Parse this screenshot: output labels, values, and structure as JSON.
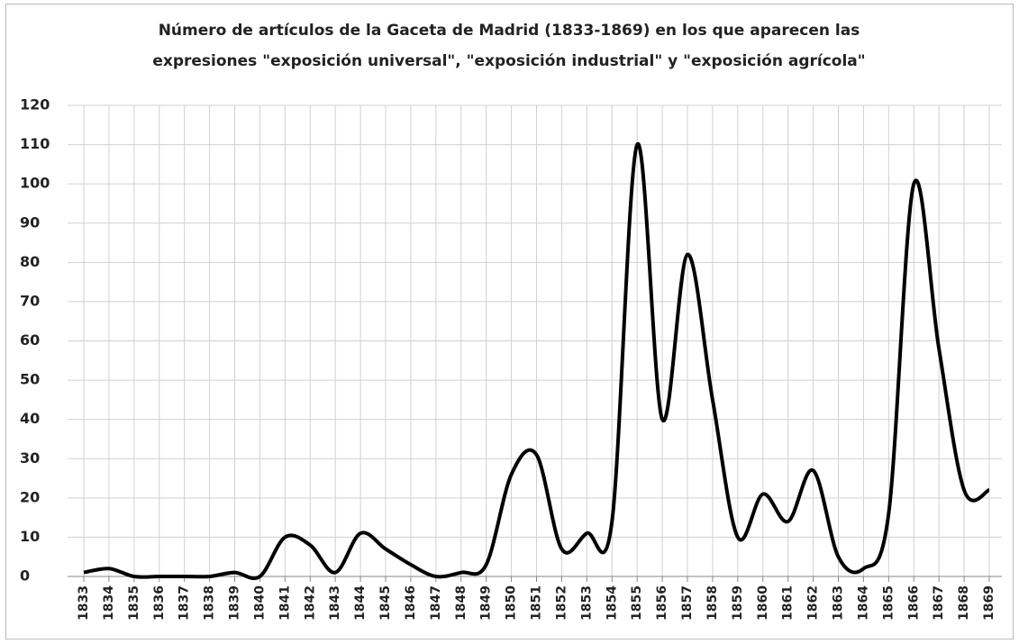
{
  "chart_data": {
    "type": "line",
    "title": [
      "Número de artículos de la Gaceta de Madrid (1833-1869) en los que aparecen las",
      "expresiones \"exposición universal\", \"exposición industrial\" y \"exposición agrícola\""
    ],
    "categories": [
      "1833",
      "1834",
      "1835",
      "1836",
      "1837",
      "1838",
      "1839",
      "1840",
      "1841",
      "1842",
      "1843",
      "1844",
      "1845",
      "1846",
      "1847",
      "1848",
      "1849",
      "1850",
      "1851",
      "1852",
      "1853",
      "1854",
      "1855",
      "1856",
      "1857",
      "1858",
      "1859",
      "1860",
      "1861",
      "1862",
      "1863",
      "1864",
      "1865",
      "1866",
      "1867",
      "1868",
      "1869"
    ],
    "values": [
      1,
      2,
      0,
      0,
      0,
      0,
      1,
      0,
      10,
      8,
      1,
      11,
      7,
      3,
      0,
      1,
      3,
      26,
      31,
      7,
      11,
      14,
      110,
      40,
      82,
      45,
      10,
      21,
      14,
      27,
      5,
      2,
      16,
      100,
      58,
      22,
      22
    ],
    "color": "#000000",
    "smooth": true,
    "ylim": [
      0,
      120
    ],
    "yticks": [
      0,
      10,
      20,
      30,
      40,
      50,
      60,
      70,
      80,
      90,
      100,
      110,
      120
    ],
    "grid": true
  }
}
